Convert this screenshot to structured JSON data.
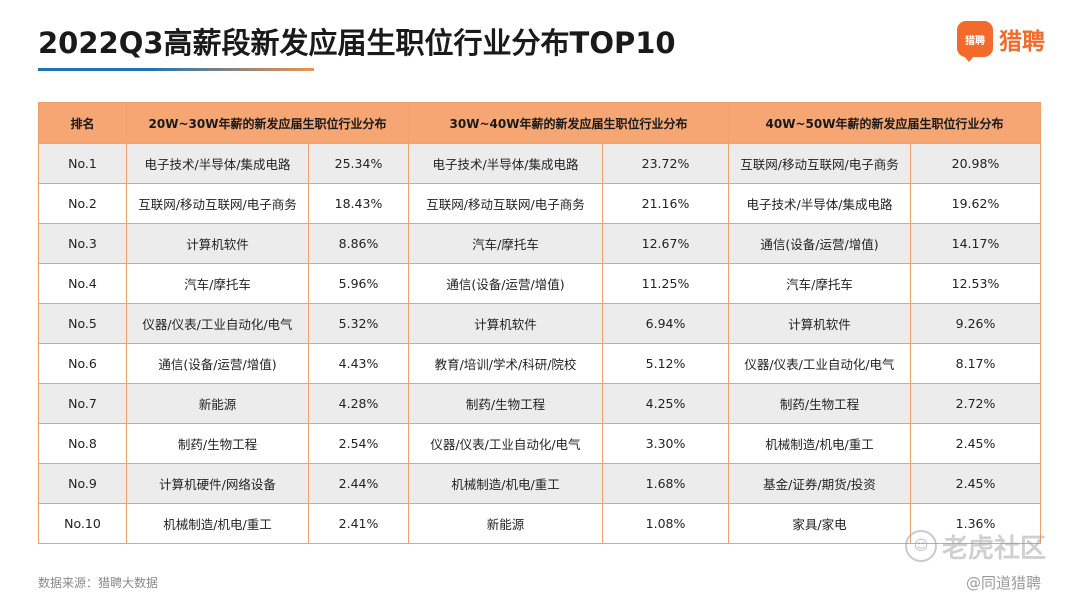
{
  "title": "2022Q3高薪段新发应届生职位行业分布TOP10",
  "logo": {
    "mark": "猎聘",
    "text": "猎聘"
  },
  "colors": {
    "header_bg": "#f5a673",
    "border": "#f2a06c",
    "accent": "#f26b2b",
    "underline_blue": "#1e73b9"
  },
  "table": {
    "headers": [
      "排名",
      "20W~30W年薪的新发应届生职位行业分布",
      "30W~40W年薪的新发应届生职位行业分布",
      "40W~50W年薪的新发应届生职位行业分布"
    ],
    "rows": [
      {
        "rank": "No.1",
        "c1": "电子技术/半导体/集成电路",
        "v1": "25.34%",
        "c2": "电子技术/半导体/集成电路",
        "v2": "23.72%",
        "c3": "互联网/移动互联网/电子商务",
        "v3": "20.98%"
      },
      {
        "rank": "No.2",
        "c1": "互联网/移动互联网/电子商务",
        "v1": "18.43%",
        "c2": "互联网/移动互联网/电子商务",
        "v2": "21.16%",
        "c3": "电子技术/半导体/集成电路",
        "v3": "19.62%"
      },
      {
        "rank": "No.3",
        "c1": "计算机软件",
        "v1": "8.86%",
        "c2": "汽车/摩托车",
        "v2": "12.67%",
        "c3": "通信(设备/运营/增值)",
        "v3": "14.17%"
      },
      {
        "rank": "No.4",
        "c1": "汽车/摩托车",
        "v1": "5.96%",
        "c2": "通信(设备/运营/增值)",
        "v2": "11.25%",
        "c3": "汽车/摩托车",
        "v3": "12.53%"
      },
      {
        "rank": "No.5",
        "c1": "仪器/仪表/工业自动化/电气",
        "v1": "5.32%",
        "c2": "计算机软件",
        "v2": "6.94%",
        "c3": "计算机软件",
        "v3": "9.26%"
      },
      {
        "rank": "No.6",
        "c1": "通信(设备/运营/增值)",
        "v1": "4.43%",
        "c2": "教育/培训/学术/科研/院校",
        "v2": "5.12%",
        "c3": "仪器/仪表/工业自动化/电气",
        "v3": "8.17%"
      },
      {
        "rank": "No.7",
        "c1": "新能源",
        "v1": "4.28%",
        "c2": "制药/生物工程",
        "v2": "4.25%",
        "c3": "制药/生物工程",
        "v3": "2.72%"
      },
      {
        "rank": "No.8",
        "c1": "制药/生物工程",
        "v1": "2.54%",
        "c2": "仪器/仪表/工业自动化/电气",
        "v2": "3.30%",
        "c3": "机械制造/机电/重工",
        "v3": "2.45%"
      },
      {
        "rank": "No.9",
        "c1": "计算机硬件/网络设备",
        "v1": "2.44%",
        "c2": "机械制造/机电/重工",
        "v2": "1.68%",
        "c3": "基金/证券/期货/投资",
        "v3": "2.45%"
      },
      {
        "rank": "No.10",
        "c1": "机械制造/机电/重工",
        "v1": "2.41%",
        "c2": "新能源",
        "v2": "1.08%",
        "c3": "家具/家电",
        "v3": "1.36%"
      }
    ]
  },
  "source": "数据来源：猎聘大数据",
  "watermark": {
    "main": "老虎社区",
    "sub": "@同道猎聘",
    "icon": "tiger-icon"
  }
}
